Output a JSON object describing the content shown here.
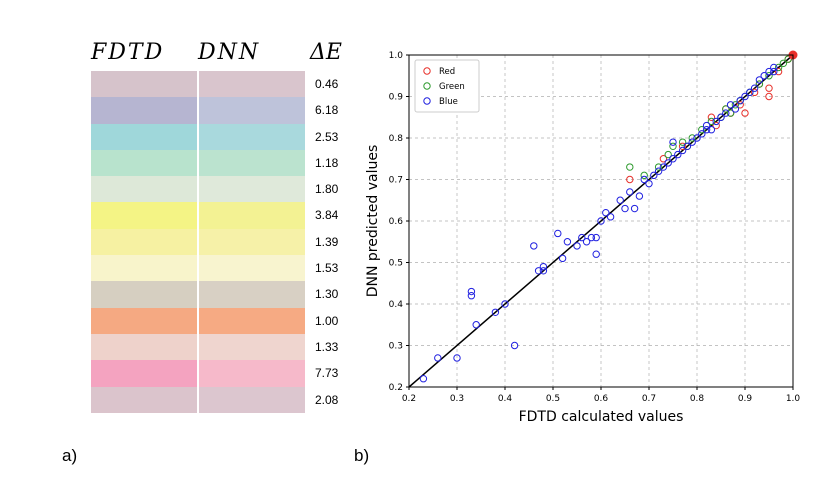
{
  "panel_a_label": "a)",
  "panel_b_label": "b)",
  "swatch_table": {
    "col_fdtd": "FDTD",
    "col_dnn": "DNN",
    "col_delta": "ΔE",
    "rows": [
      {
        "fdtd_color": "#d6c3cb",
        "dnn_color": "#d9c5cd",
        "delta": "0.46"
      },
      {
        "fdtd_color": "#b6b5d1",
        "dnn_color": "#bec3da",
        "delta": "6.18"
      },
      {
        "fdtd_color": "#9fd7da",
        "dnn_color": "#a9d9dd",
        "delta": "2.53"
      },
      {
        "fdtd_color": "#b8e3cd",
        "dnn_color": "#bbe3cf",
        "delta": "1.18"
      },
      {
        "fdtd_color": "#dde8d8",
        "dnn_color": "#dfe9da",
        "delta": "1.80"
      },
      {
        "fdtd_color": "#f4f485",
        "dnn_color": "#f3f293",
        "delta": "3.84"
      },
      {
        "fdtd_color": "#f6f1a2",
        "dnn_color": "#f6f1a8",
        "delta": "1.39"
      },
      {
        "fdtd_color": "#f8f4cb",
        "dnn_color": "#f8f4cf",
        "delta": "1.53"
      },
      {
        "fdtd_color": "#d6cfc1",
        "dnn_color": "#d8d0c4",
        "delta": "1.30"
      },
      {
        "fdtd_color": "#f5a982",
        "dnn_color": "#f6aa83",
        "delta": "1.00"
      },
      {
        "fdtd_color": "#eed2cb",
        "dnn_color": "#efd5cf",
        "delta": "1.33"
      },
      {
        "fdtd_color": "#f4a3c0",
        "dnn_color": "#f6b9ca",
        "delta": "7.73"
      },
      {
        "fdtd_color": "#dbc4cc",
        "dnn_color": "#dcc6cf",
        "delta": "2.08"
      }
    ]
  },
  "chart_data": {
    "type": "scatter",
    "title": "",
    "xlabel": "FDTD calculated values",
    "ylabel": "DNN predicted values",
    "xlim": [
      0.2,
      1.0
    ],
    "ylim": [
      0.2,
      1.0
    ],
    "xticks": [
      "0.2",
      "0.3",
      "0.4",
      "0.5",
      "0.6",
      "0.7",
      "0.8",
      "0.9",
      "1.0"
    ],
    "yticks": [
      "0.2",
      "0.3",
      "0.4",
      "0.5",
      "0.6",
      "0.7",
      "0.8",
      "0.9",
      "1.0"
    ],
    "grid": true,
    "legend_position": "top-left",
    "reference_line": {
      "x": [
        0.2,
        1.0
      ],
      "y": [
        0.2,
        1.0
      ],
      "color": "#000000"
    },
    "series": [
      {
        "name": "Red",
        "color": "#e8302a",
        "points": [
          [
            0.66,
            0.7
          ],
          [
            0.73,
            0.75
          ],
          [
            0.77,
            0.78
          ],
          [
            0.83,
            0.85
          ],
          [
            0.84,
            0.83
          ],
          [
            0.86,
            0.87
          ],
          [
            0.87,
            0.86
          ],
          [
            0.89,
            0.88
          ],
          [
            0.9,
            0.86
          ],
          [
            0.92,
            0.91
          ],
          [
            0.93,
            0.93
          ],
          [
            0.95,
            0.92
          ],
          [
            0.95,
            0.9
          ],
          [
            0.97,
            0.96
          ],
          [
            0.99,
            0.99
          ],
          [
            1.0,
            1.0
          ]
        ]
      },
      {
        "name": "Green",
        "color": "#2e9a2e",
        "points": [
          [
            0.66,
            0.73
          ],
          [
            0.69,
            0.71
          ],
          [
            0.72,
            0.73
          ],
          [
            0.74,
            0.76
          ],
          [
            0.75,
            0.78
          ],
          [
            0.77,
            0.79
          ],
          [
            0.78,
            0.78
          ],
          [
            0.79,
            0.8
          ],
          [
            0.81,
            0.82
          ],
          [
            0.83,
            0.84
          ],
          [
            0.85,
            0.85
          ],
          [
            0.86,
            0.87
          ],
          [
            0.87,
            0.86
          ],
          [
            0.88,
            0.88
          ],
          [
            0.89,
            0.89
          ],
          [
            0.91,
            0.91
          ],
          [
            0.93,
            0.93
          ],
          [
            0.95,
            0.95
          ],
          [
            0.97,
            0.97
          ],
          [
            0.98,
            0.98
          ],
          [
            0.99,
            0.99
          ]
        ]
      },
      {
        "name": "Blue",
        "color": "#2020e0",
        "points": [
          [
            0.23,
            0.22
          ],
          [
            0.26,
            0.27
          ],
          [
            0.3,
            0.27
          ],
          [
            0.33,
            0.42
          ],
          [
            0.33,
            0.43
          ],
          [
            0.34,
            0.35
          ],
          [
            0.38,
            0.38
          ],
          [
            0.4,
            0.4
          ],
          [
            0.42,
            0.3
          ],
          [
            0.46,
            0.54
          ],
          [
            0.47,
            0.48
          ],
          [
            0.48,
            0.49
          ],
          [
            0.48,
            0.48
          ],
          [
            0.51,
            0.57
          ],
          [
            0.52,
            0.51
          ],
          [
            0.53,
            0.55
          ],
          [
            0.55,
            0.54
          ],
          [
            0.56,
            0.56
          ],
          [
            0.57,
            0.55
          ],
          [
            0.58,
            0.56
          ],
          [
            0.59,
            0.56
          ],
          [
            0.59,
            0.52
          ],
          [
            0.6,
            0.6
          ],
          [
            0.61,
            0.62
          ],
          [
            0.62,
            0.61
          ],
          [
            0.64,
            0.65
          ],
          [
            0.65,
            0.63
          ],
          [
            0.66,
            0.67
          ],
          [
            0.67,
            0.63
          ],
          [
            0.68,
            0.66
          ],
          [
            0.69,
            0.7
          ],
          [
            0.7,
            0.69
          ],
          [
            0.71,
            0.71
          ],
          [
            0.72,
            0.72
          ],
          [
            0.73,
            0.73
          ],
          [
            0.74,
            0.74
          ],
          [
            0.75,
            0.75
          ],
          [
            0.75,
            0.79
          ],
          [
            0.76,
            0.76
          ],
          [
            0.77,
            0.77
          ],
          [
            0.78,
            0.78
          ],
          [
            0.79,
            0.79
          ],
          [
            0.8,
            0.8
          ],
          [
            0.81,
            0.81
          ],
          [
            0.82,
            0.82
          ],
          [
            0.82,
            0.83
          ],
          [
            0.83,
            0.82
          ],
          [
            0.84,
            0.84
          ],
          [
            0.85,
            0.85
          ],
          [
            0.86,
            0.86
          ],
          [
            0.87,
            0.88
          ],
          [
            0.88,
            0.87
          ],
          [
            0.89,
            0.89
          ],
          [
            0.9,
            0.9
          ],
          [
            0.91,
            0.91
          ],
          [
            0.92,
            0.92
          ],
          [
            0.93,
            0.94
          ],
          [
            0.94,
            0.95
          ],
          [
            0.95,
            0.96
          ],
          [
            0.96,
            0.96
          ],
          [
            0.96,
            0.97
          ]
        ]
      }
    ]
  }
}
